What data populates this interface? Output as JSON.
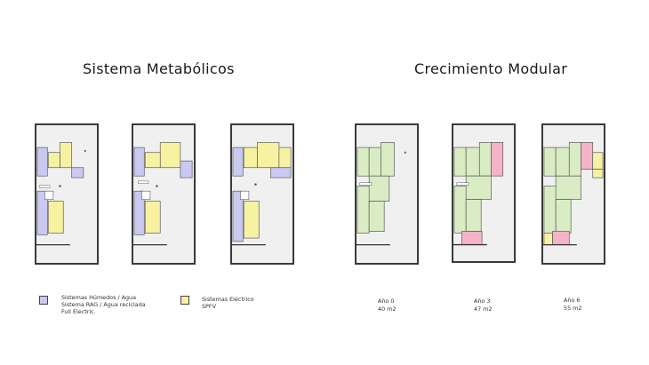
{
  "titles": {
    "left": "Sistema Metabólicos",
    "right": "Crecimiento Modular"
  },
  "legend": {
    "wet_label": "Sistemas Húmedos / Agua\nSistema RAG / Agua reciclada\nFull Electric.",
    "electric_label": "Sistemas Eléctrico\nSPFV"
  },
  "phases": [
    {
      "year": "Año 0",
      "area": "40 m2"
    },
    {
      "year": "Año 3",
      "area": "47 m2"
    },
    {
      "year": "Año 6",
      "area": "55 m2"
    }
  ],
  "colors": {
    "wet": "#c9c9f1",
    "electric": "#f6f2a2",
    "module": "#d9ecc3",
    "new_module": "#f5b3c9",
    "plan_bg": "#f0f0f0",
    "wall": "#3a3a3a"
  }
}
